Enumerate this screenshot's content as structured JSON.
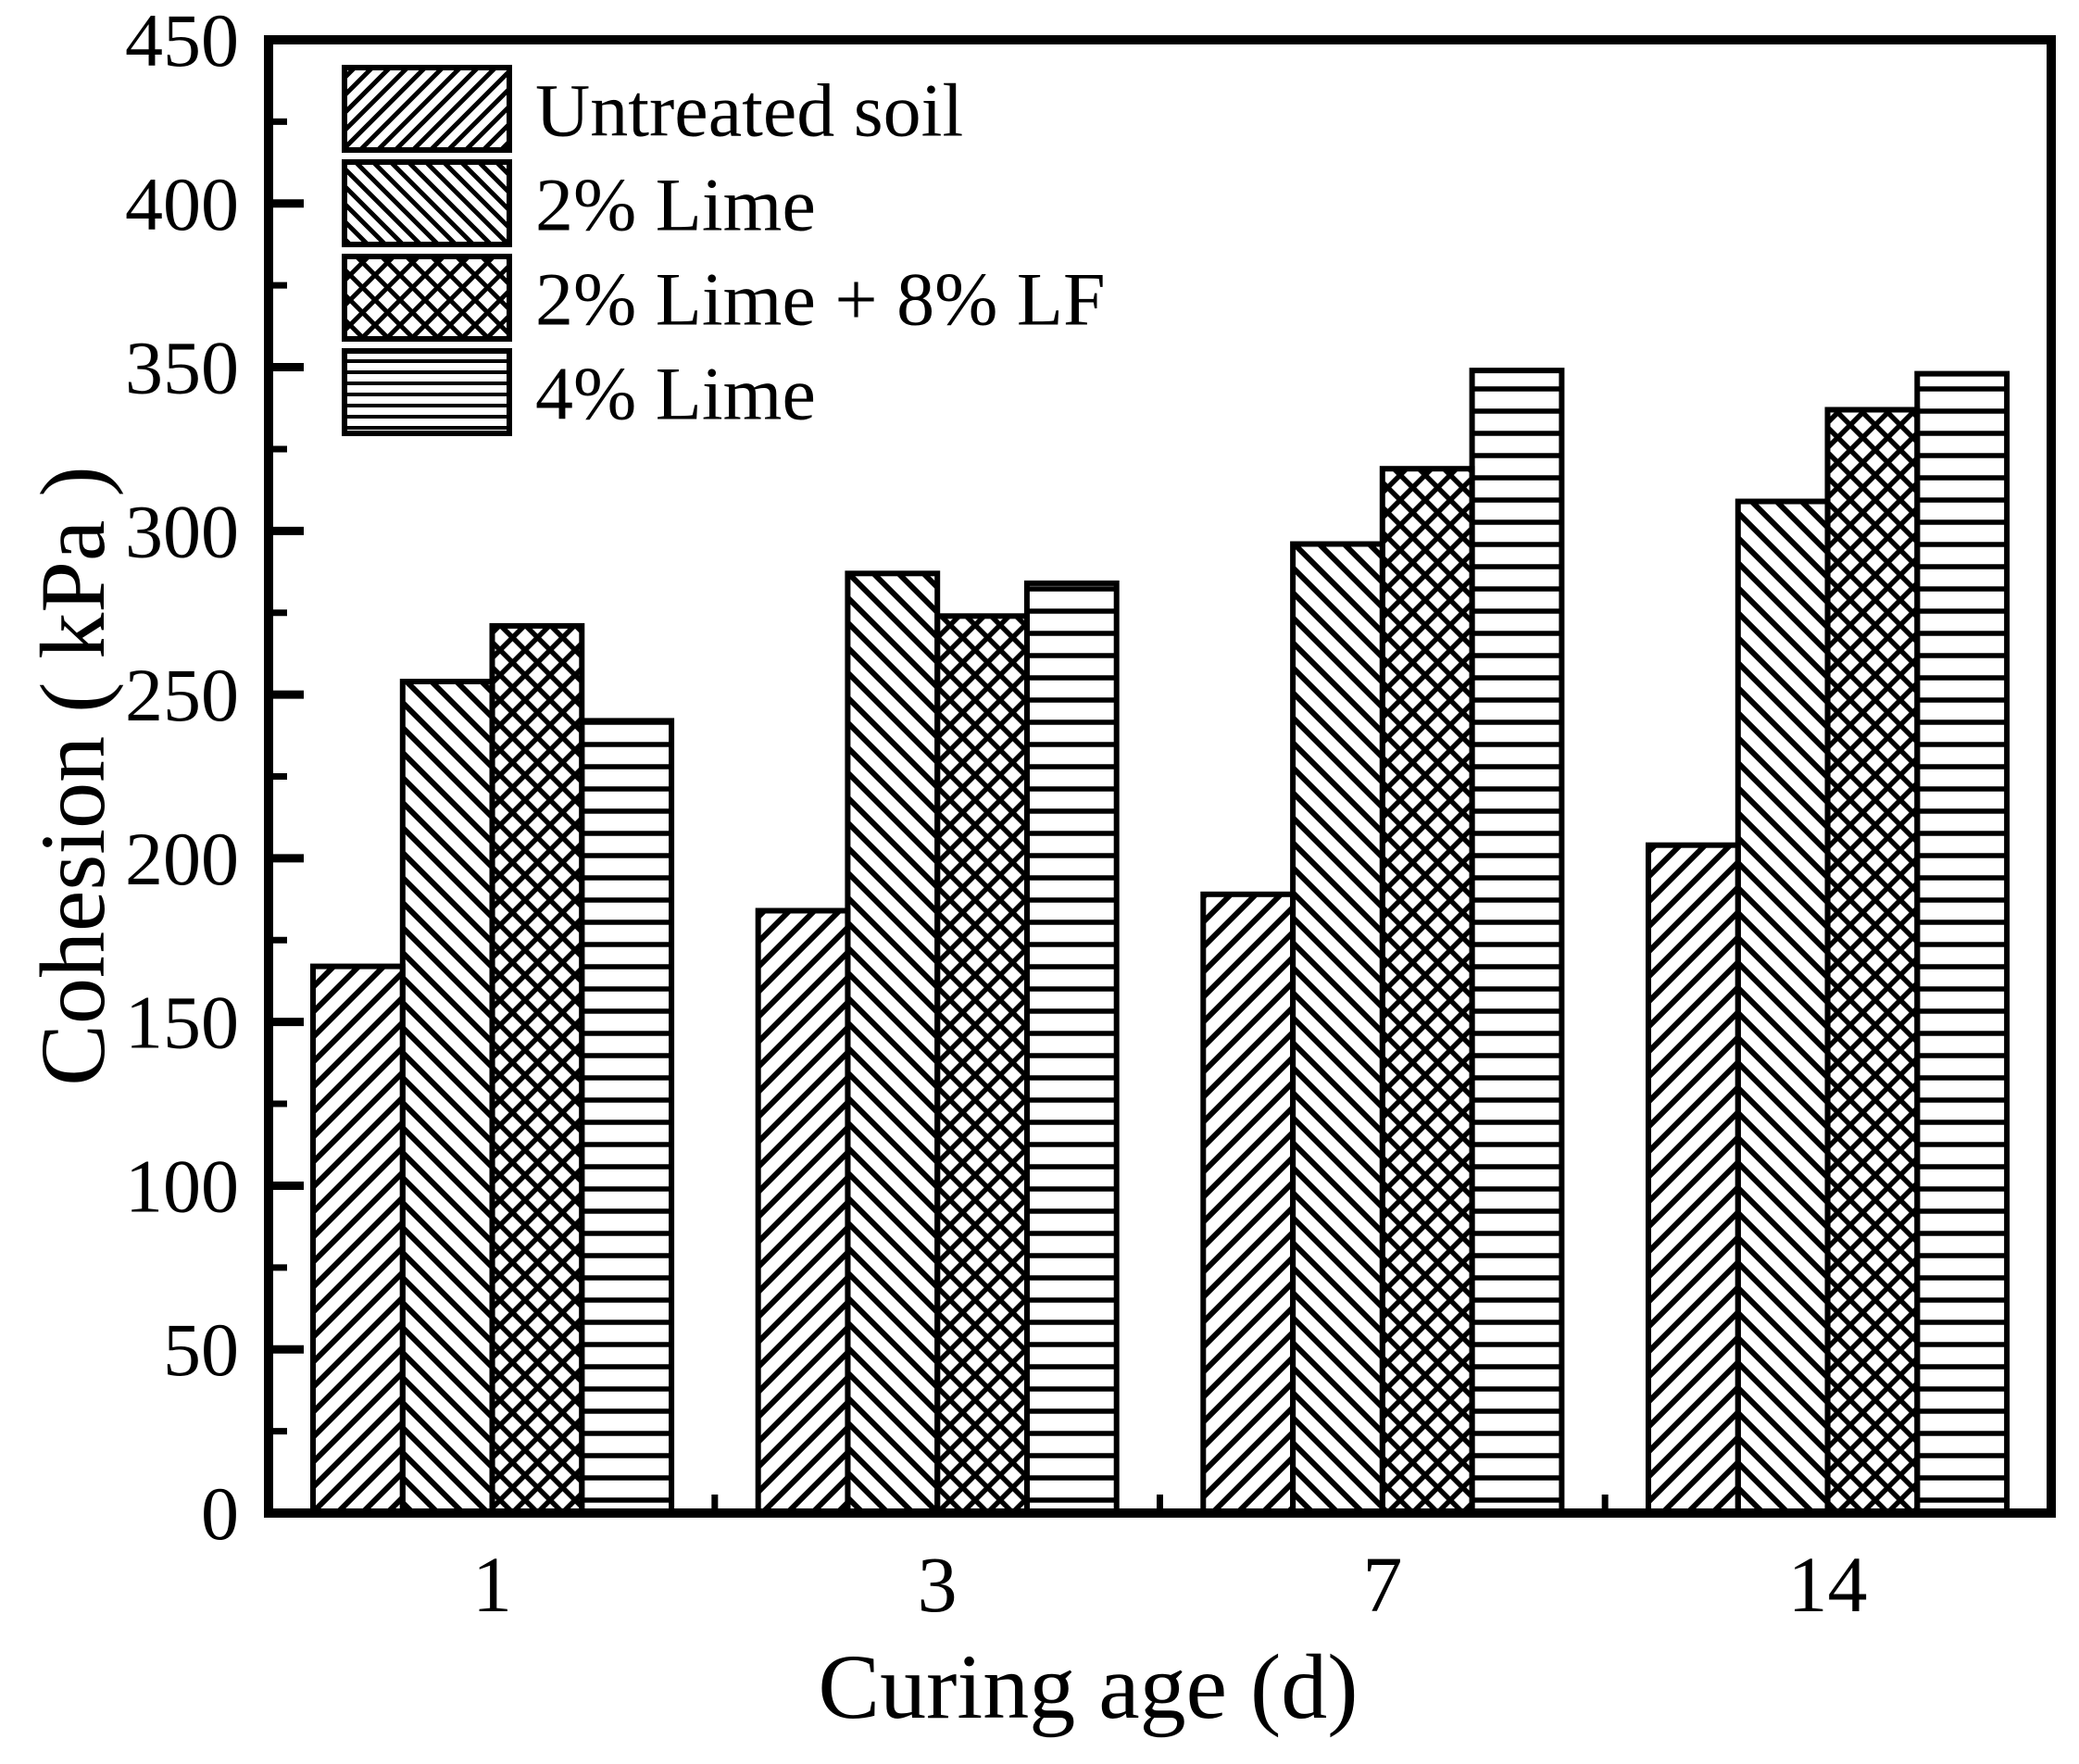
{
  "chart_data": {
    "type": "bar",
    "title": "",
    "xlabel": "Curing age (d)",
    "ylabel": "Cohesion ( kPa )",
    "categories": [
      "1",
      "3",
      "7",
      "14"
    ],
    "series": [
      {
        "name": "Untreated soil",
        "hatch": "forward-diagonal",
        "values": [
          167,
          184,
          189,
          204
        ]
      },
      {
        "name": "2% Lime",
        "hatch": "backward-diagonal",
        "values": [
          254,
          287,
          296,
          309
        ]
      },
      {
        "name": "2% Lime + 8% LF",
        "hatch": "cross",
        "values": [
          271,
          274,
          319,
          337
        ]
      },
      {
        "name": "4% Lime",
        "hatch": "horizontal",
        "values": [
          242,
          284,
          349,
          348
        ]
      }
    ],
    "ylim": [
      0,
      450
    ],
    "y_major_step": 50,
    "y_minor_step": 25,
    "y_tick_labels": [
      "0",
      "50",
      "100",
      "150",
      "200",
      "250",
      "300",
      "350",
      "400",
      "450"
    ],
    "legend_position": "top-left",
    "grid": false,
    "colors": {
      "foreground": "#000000",
      "background": "#ffffff"
    }
  }
}
